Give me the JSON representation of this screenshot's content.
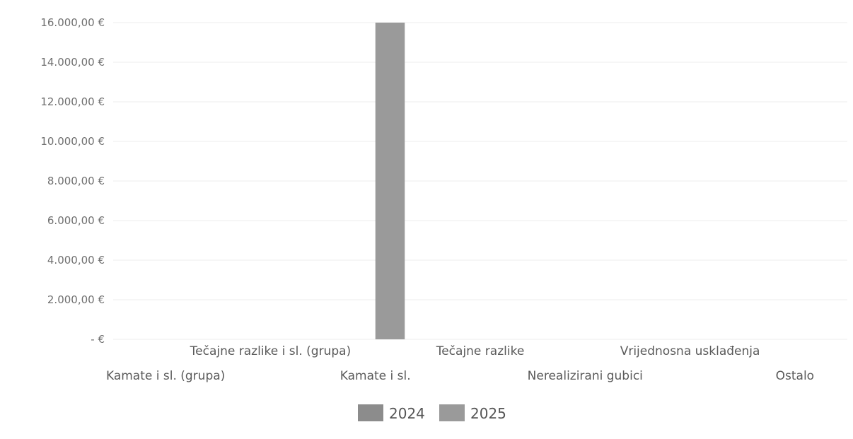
{
  "chart_data": {
    "type": "bar",
    "categories": [
      "Kamate i sl. (grupa)",
      "Tečajne razlike i sl. (grupa)",
      "Kamate i sl.",
      "Tečajne razlike",
      "Nerealizirani gubici",
      "Vrijednosna usklađenja",
      "Ostalo"
    ],
    "series": [
      {
        "name": "2024",
        "values": [
          0,
          0,
          0,
          0,
          0,
          0,
          0
        ],
        "color": "#8c8c8c"
      },
      {
        "name": "2025",
        "values": [
          0,
          0,
          16000,
          0,
          0,
          0,
          0
        ],
        "color": "#9a9a9a"
      }
    ],
    "ylim": [
      0,
      16000
    ],
    "yticks": [
      {
        "value": 16000,
        "label": "16.000,00 €"
      },
      {
        "value": 14000,
        "label": "14.000,00 €"
      },
      {
        "value": 12000,
        "label": "12.000,00 €"
      },
      {
        "value": 10000,
        "label": "10.000,00 €"
      },
      {
        "value": 8000,
        "label": "8.000,00 €"
      },
      {
        "value": 6000,
        "label": "6.000,00 €"
      },
      {
        "value": 4000,
        "label": "4.000,00 €"
      },
      {
        "value": 2000,
        "label": "2.000,00 €"
      },
      {
        "value": 0,
        "label": "-  €"
      }
    ],
    "grid": true,
    "legend_position": "bottom"
  }
}
